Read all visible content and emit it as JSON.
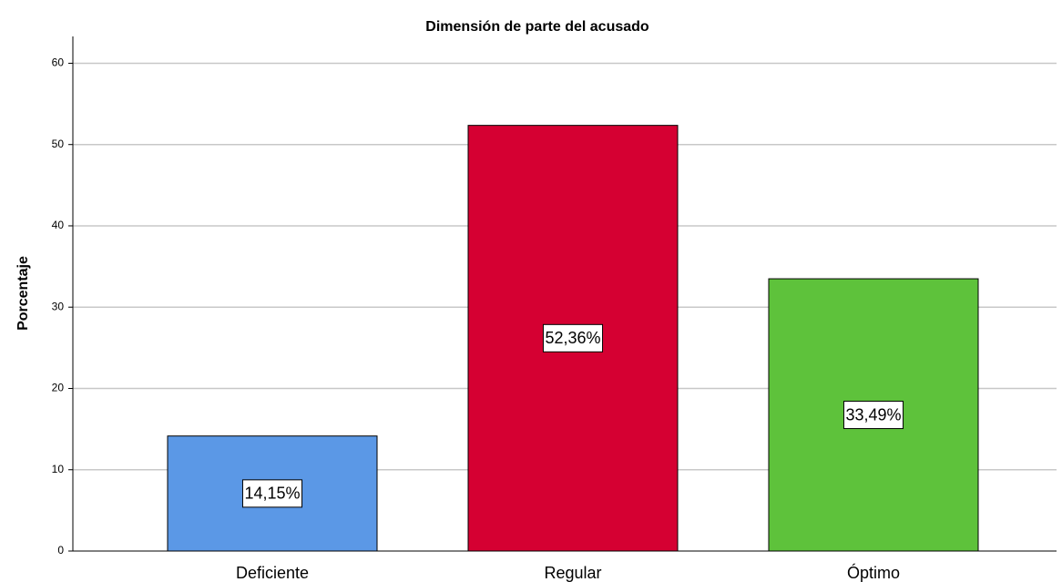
{
  "chart_data": {
    "type": "bar",
    "title": "Dimensión de parte del acusado",
    "ylabel": "Porcentaje",
    "categories": [
      "Deficiente",
      "Regular",
      "Óptimo"
    ],
    "values": [
      14.15,
      52.36,
      33.49
    ],
    "value_labels": [
      "14,15%",
      "52,36%",
      "33,49%"
    ],
    "colors": [
      "#5b98e6",
      "#d50032",
      "#5ec23b"
    ],
    "ylim": [
      0,
      63.3
    ],
    "yticks": [
      0,
      10,
      20,
      30,
      40,
      50,
      60
    ],
    "grid": true
  }
}
